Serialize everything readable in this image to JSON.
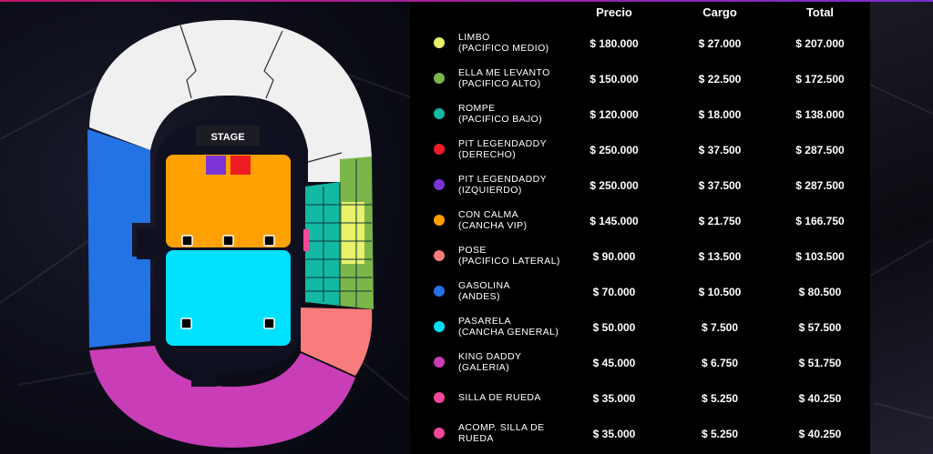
{
  "table": {
    "headers": {
      "price": "Precio",
      "fee": "Cargo",
      "total": "Total"
    },
    "rows": [
      {
        "zone_line1": "LIMBO",
        "zone_line2": "(PACIFICO MEDIO)",
        "color": "#e8f26a",
        "price": "$ 180.000",
        "fee": "$ 27.000",
        "total": "$ 207.000"
      },
      {
        "zone_line1": "ELLA ME LEVANTO",
        "zone_line2": "(PACIFICO ALTO)",
        "color": "#7ab648",
        "price": "$ 150.000",
        "fee": "$ 22.500",
        "total": "$ 172.500"
      },
      {
        "zone_line1": "ROMPE",
        "zone_line2": "(PACIFICO BAJO)",
        "color": "#12b9a3",
        "price": "$ 120.000",
        "fee": "$ 18.000",
        "total": "$ 138.000"
      },
      {
        "zone_line1": "PIT LEGENDADDY",
        "zone_line2": "(DERECHO)",
        "color": "#ee1c24",
        "price": "$ 250.000",
        "fee": "$ 37.500",
        "total": "$ 287.500"
      },
      {
        "zone_line1": "PIT LEGENDADDY",
        "zone_line2": "(IZQUIERDO)",
        "color": "#7b34d6",
        "price": "$ 250.000",
        "fee": "$ 37.500",
        "total": "$ 287.500"
      },
      {
        "zone_line1": "CON CALMA",
        "zone_line2": "(CANCHA VIP)",
        "color": "#ffa100",
        "price": "$ 145.000",
        "fee": "$ 21.750",
        "total": "$ 166.750"
      },
      {
        "zone_line1": "POSE",
        "zone_line2": "(PACIFICO LATERAL)",
        "color": "#f87c7c",
        "price": "$ 90.000",
        "fee": "$ 13.500",
        "total": "$ 103.500"
      },
      {
        "zone_line1": "GASOLINA",
        "zone_line2": "(ANDES)",
        "color": "#2473e5",
        "price": "$ 70.000",
        "fee": "$ 10.500",
        "total": "$ 80.500"
      },
      {
        "zone_line1": "PASARELA",
        "zone_line2": "(CANCHA GENERAL)",
        "color": "#00e1ff",
        "price": "$ 50.000",
        "fee": "$ 7.500",
        "total": "$ 57.500"
      },
      {
        "zone_line1": "KING DADDY",
        "zone_line2": "(GALERIA)",
        "color": "#c93db7",
        "price": "$ 45.000",
        "fee": "$ 6.750",
        "total": "$ 51.750"
      },
      {
        "zone_line1": "SILLA DE RUEDA",
        "zone_line2": "",
        "color": "#f4479b",
        "price": "$ 35.000",
        "fee": "$ 5.250",
        "total": "$ 40.250"
      },
      {
        "zone_line1": "ACOMP. SILLA DE",
        "zone_line2": "RUEDA",
        "color": "#f4479b",
        "price": "$ 35.000",
        "fee": "$ 5.250",
        "total": "$ 40.250"
      }
    ]
  },
  "map": {
    "stage_label": "STAGE",
    "colors": {
      "pacifico_alto": "#f0f0f0",
      "andes": "#2473e5",
      "galeria": "#c93db7",
      "cancha_vip": "#ffa100",
      "cancha_general": "#00e1ff",
      "pit_izquierdo": "#7b34d6",
      "pit_derecho": "#ee1c24",
      "pacifico_lateral": "#f87c7c",
      "pacifico_bajo": "#12b9a3",
      "pacifico_medio": "#e8f26a",
      "pacifico_alto_side": "#7ab648",
      "silla_rueda": "#f4479b"
    }
  }
}
